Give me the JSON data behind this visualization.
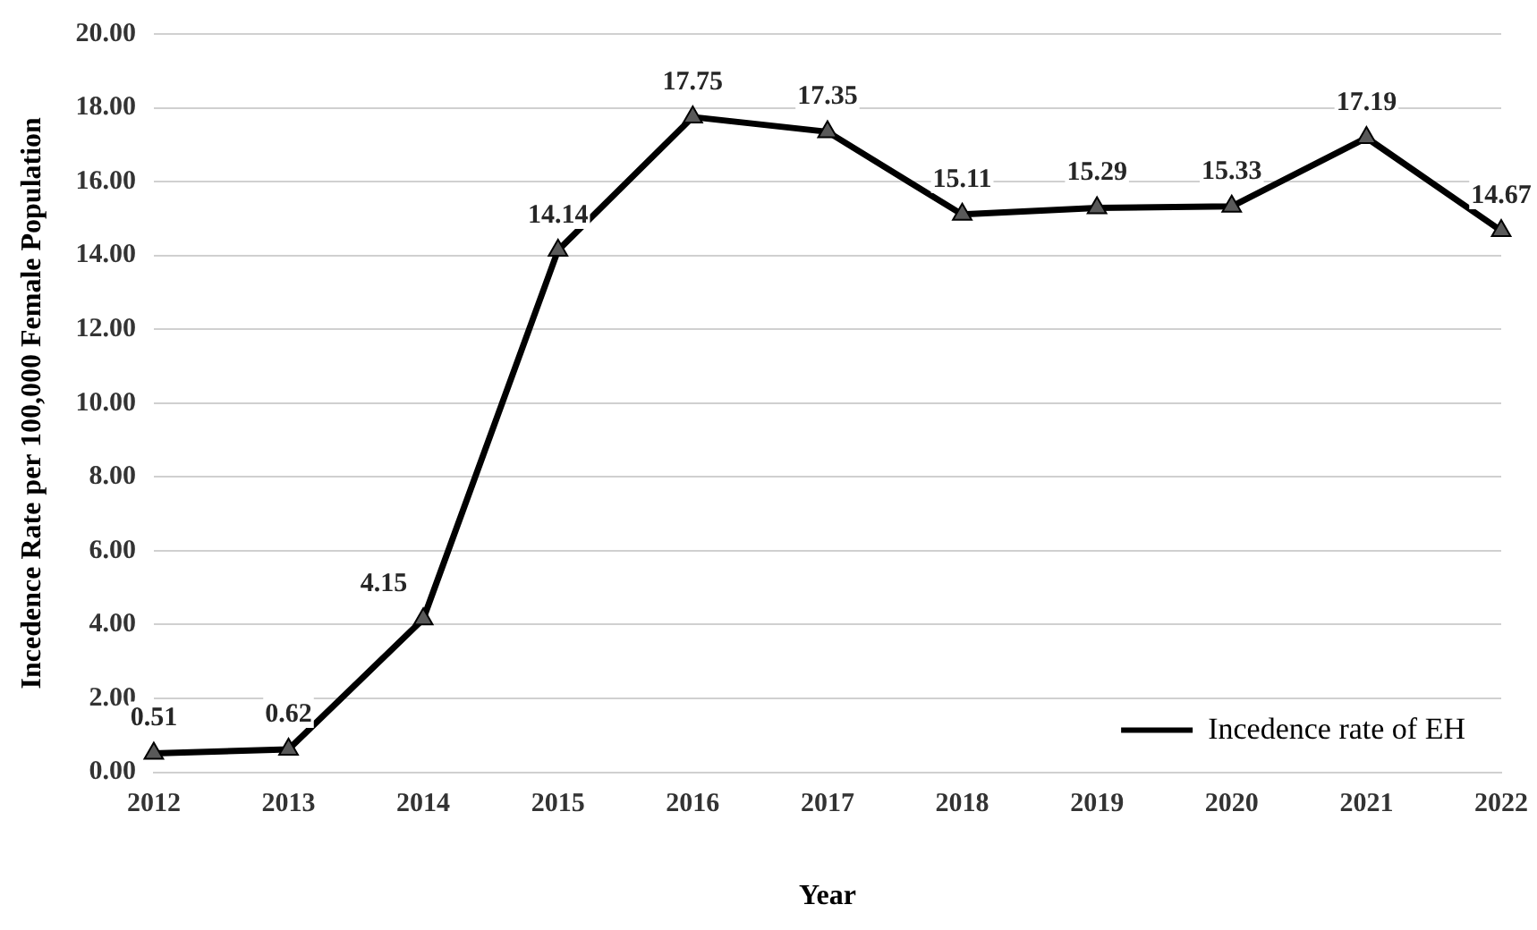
{
  "chart_data": {
    "type": "line",
    "xlabel": "Year",
    "ylabel": "Incedence Rate per 100,000 Female Population",
    "categories": [
      "2012",
      "2013",
      "2014",
      "2015",
      "2016",
      "2017",
      "2018",
      "2019",
      "2020",
      "2021",
      "2022"
    ],
    "series": [
      {
        "name": "Incedence rate of EH",
        "color": "#000000",
        "values": [
          0.51,
          0.62,
          4.15,
          14.14,
          17.75,
          17.35,
          15.11,
          15.29,
          15.33,
          17.19,
          14.67
        ]
      }
    ],
    "ylim": [
      0,
      20
    ],
    "yticks": [
      {
        "value": 0,
        "label": "0.00"
      },
      {
        "value": 2,
        "label": "2.00"
      },
      {
        "value": 4,
        "label": "4.00"
      },
      {
        "value": 6,
        "label": "6.00"
      },
      {
        "value": 8,
        "label": "8.00"
      },
      {
        "value": 10,
        "label": "10.00"
      },
      {
        "value": 12,
        "label": "12.00"
      },
      {
        "value": 14,
        "label": "14.00"
      },
      {
        "value": 16,
        "label": "16.00"
      },
      {
        "value": 18,
        "label": "18.00"
      },
      {
        "value": 20,
        "label": "20.00"
      }
    ],
    "grid": "y",
    "legend": "bottom right",
    "marker": "triangle",
    "line_style": "solid",
    "data_labels": true
  }
}
